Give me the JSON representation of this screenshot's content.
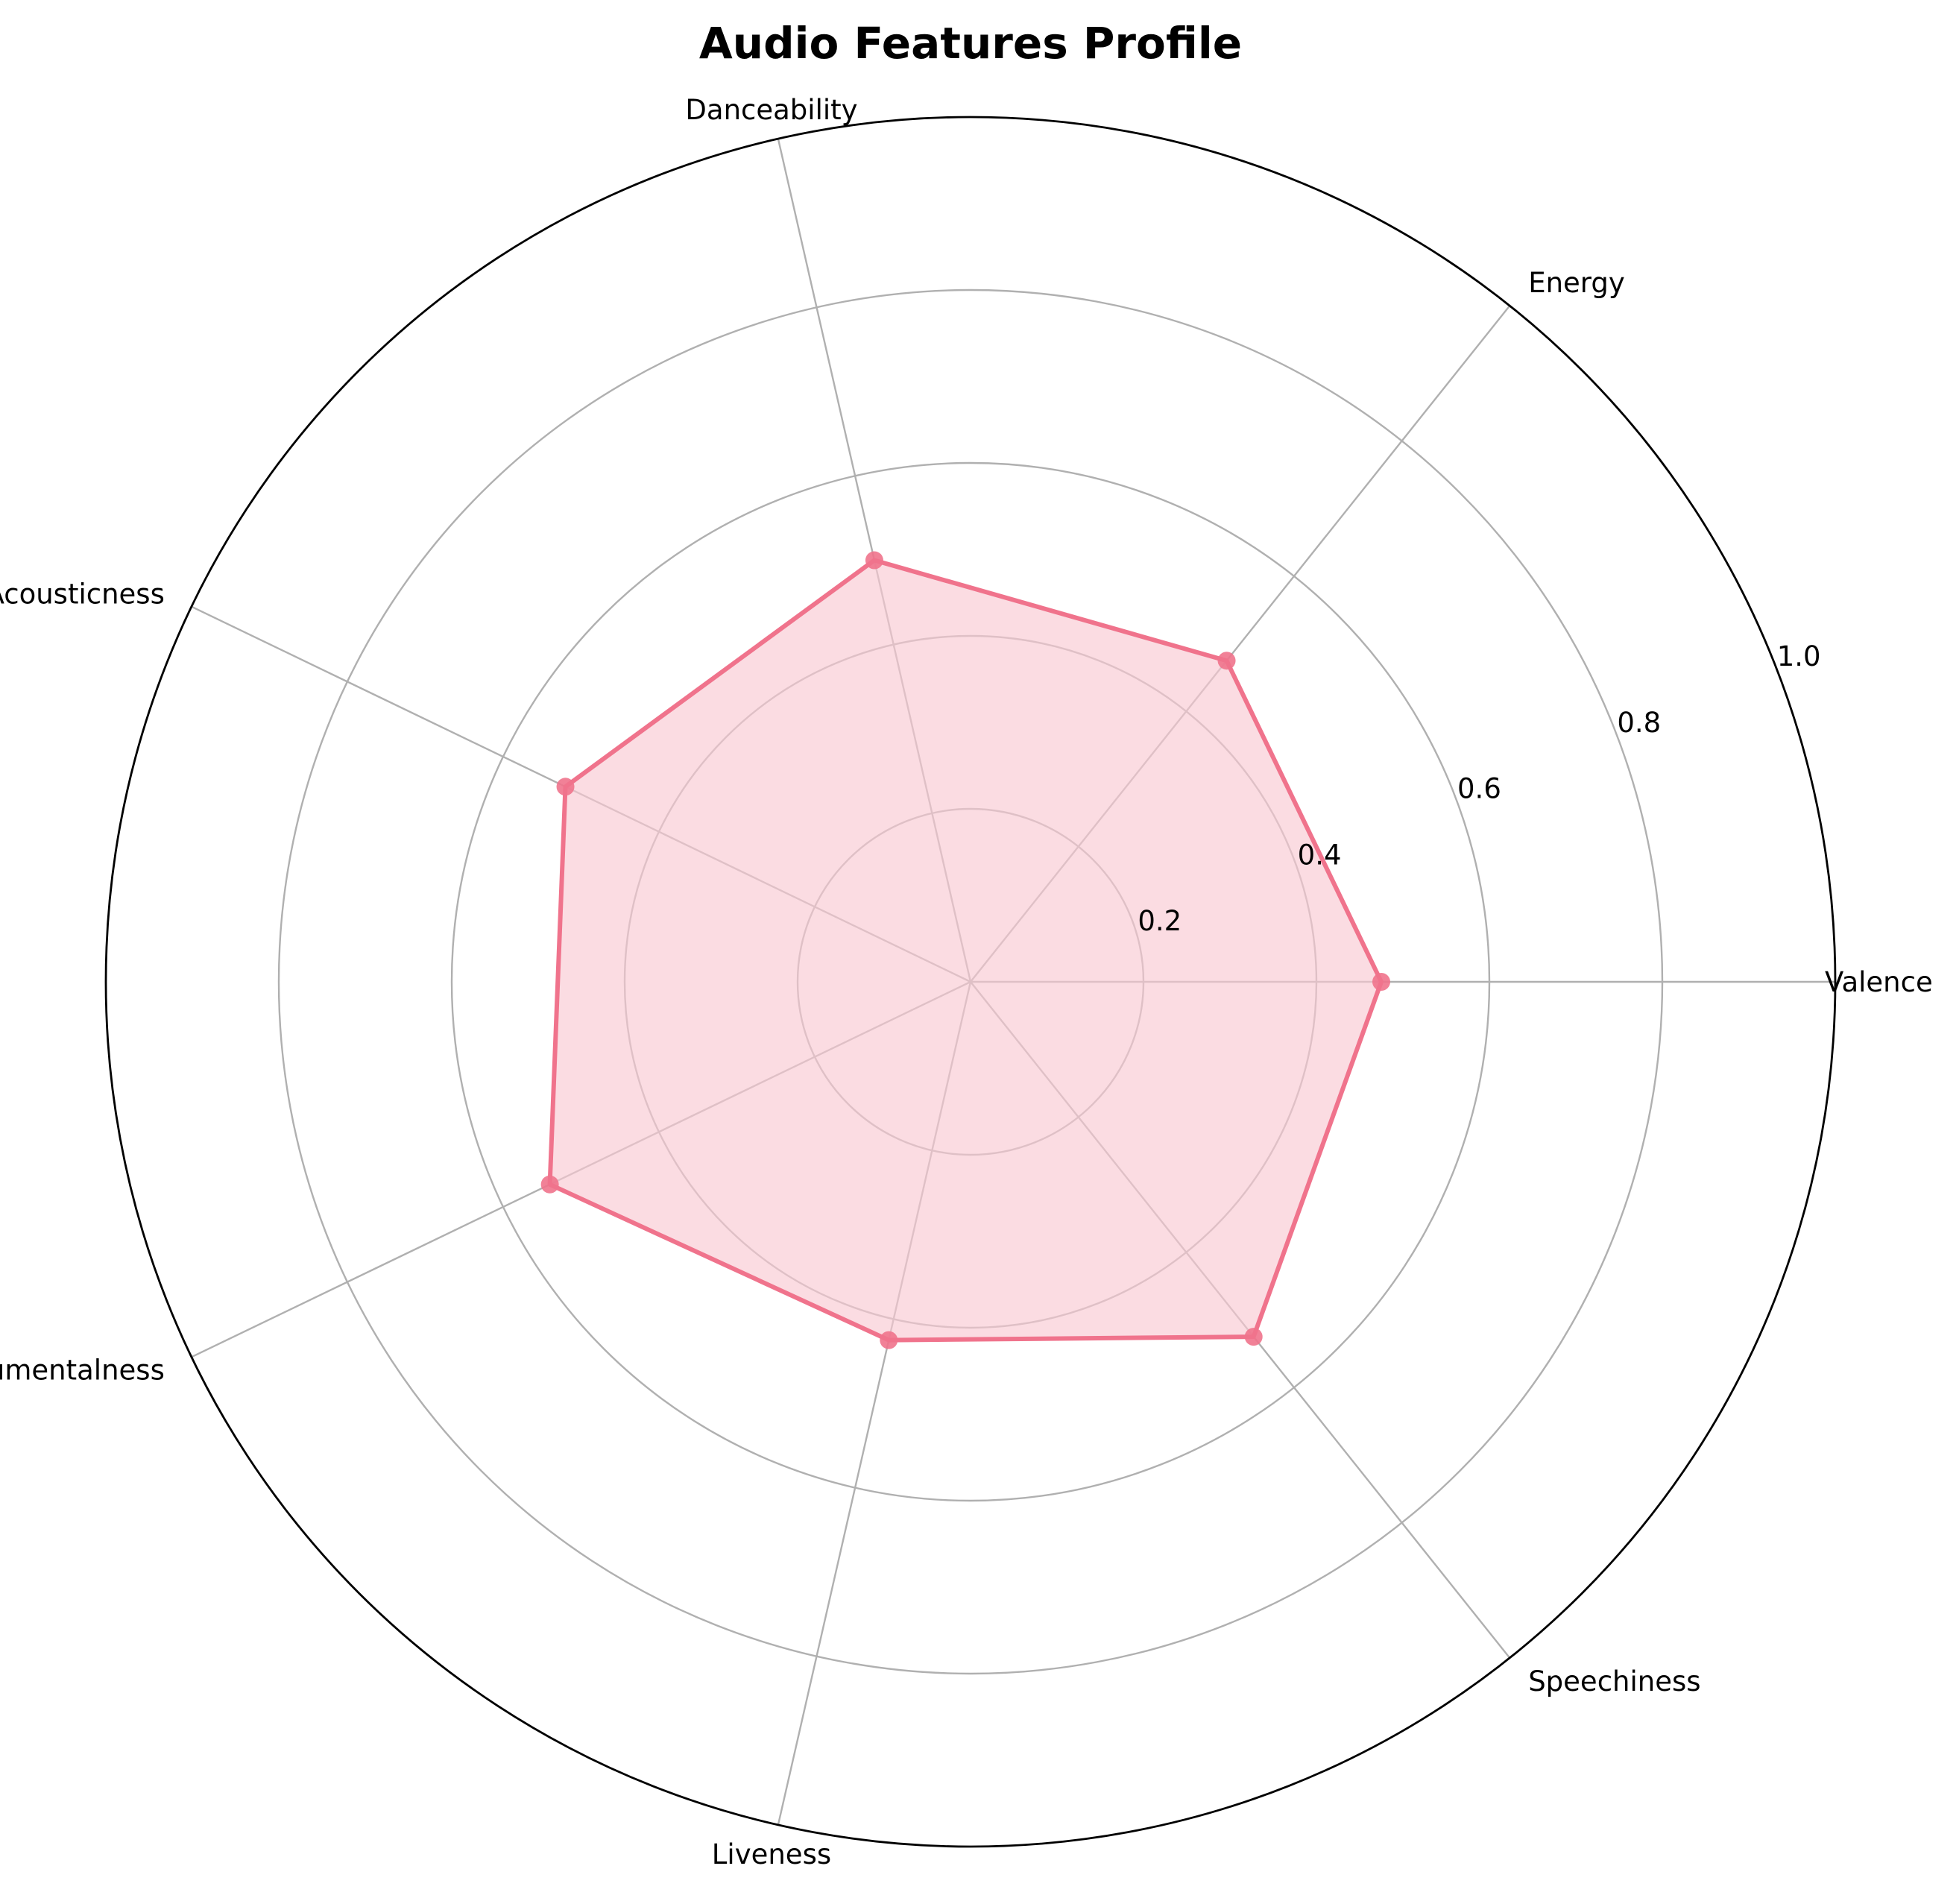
{
  "chart_data": {
    "type": "radar",
    "title": "Audio Features Profile",
    "categories": [
      "Valence",
      "Energy",
      "Danceability",
      "Acousticness",
      "Instrumentalness",
      "Liveness",
      "Speechiness"
    ],
    "series": [
      {
        "values": [
          0.475,
          0.475,
          0.5,
          0.52,
          0.54,
          0.425,
          0.525
        ],
        "color": "#f0738c",
        "fill_color": "#f9c9d3"
      }
    ],
    "rlim": [
      0,
      1.0
    ],
    "rticks": [
      0.2,
      0.4,
      0.6,
      0.8,
      1.0
    ],
    "rtick_labels": [
      "0.2",
      "0.4",
      "0.6",
      "0.8",
      "1.0"
    ],
    "grid": true
  }
}
